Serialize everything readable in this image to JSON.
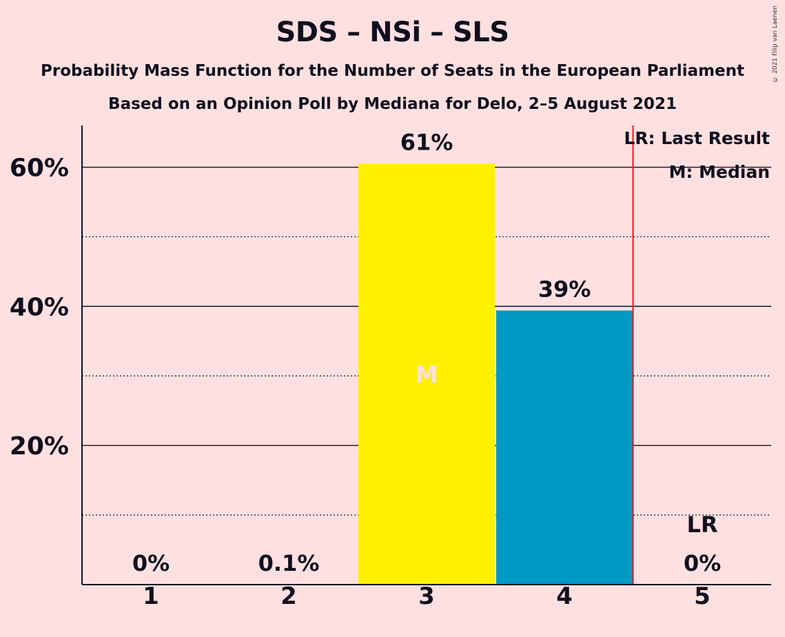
{
  "title": "SDS – NSi – SLS",
  "subtitle": "Probability Mass Function for the Number of Seats in the European Parliament",
  "subtitle2": "Based on an Opinion Poll by Mediana for Delo, 2–5 August 2021",
  "copyright": "© 2021 Filip van Laenen",
  "colors": {
    "background": "#FFE0E0",
    "bar_yellow": "#FFF000",
    "bar_blue": "#0099C4",
    "last_result_line": "#E8141E",
    "median_label": "#FFE0E0"
  },
  "chart_data": {
    "type": "bar",
    "categories": [
      "1",
      "2",
      "3",
      "4",
      "5"
    ],
    "values": [
      0,
      0.1,
      60.5,
      39.4,
      0
    ],
    "labels": [
      "0%",
      "0.1%",
      "61%",
      "39%",
      "0%"
    ],
    "bar_colors": [
      "#FFF000",
      "#FFF000",
      "#FFF000",
      "#0099C4",
      "#0099C4"
    ],
    "ylim": [
      0,
      66
    ],
    "yticks": [
      20,
      40,
      60
    ],
    "ytick_labels": [
      "20%",
      "40%",
      "60%"
    ],
    "minor_gridlines": [
      10,
      30,
      50
    ],
    "median_category": "3",
    "median_mark": "M",
    "last_result_category": "5",
    "last_result_mark": "LR",
    "legend": [
      "LR: Last Result",
      "M: Median"
    ],
    "legend_position": "top-right"
  }
}
